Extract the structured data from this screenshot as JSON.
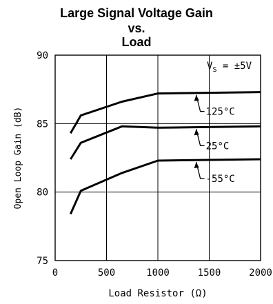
{
  "chart_data": {
    "type": "line",
    "title_lines": [
      "Large Signal Voltage Gain",
      "vs.",
      "Load"
    ],
    "xlabel": "Load Resistor (Ω)",
    "ylabel": "Open Loop Gain (dB)",
    "xlim": [
      0,
      2000
    ],
    "ylim": [
      75,
      90
    ],
    "x_ticks": [
      0,
      500,
      1000,
      1500,
      2000
    ],
    "y_ticks": [
      75,
      80,
      85,
      90
    ],
    "x_tick_labels": [
      "0",
      "500",
      "1000",
      "1500",
      "2000"
    ],
    "y_tick_labels": [
      "75",
      "80",
      "85",
      "90"
    ],
    "grid": true,
    "annotation": "VS = ±5V",
    "annotation_main": "V",
    "annotation_sub": "S",
    "annotation_rest": " = ±5V",
    "series": [
      {
        "name": "125°C",
        "points": [
          [
            150,
            84.3
          ],
          [
            250,
            85.6
          ],
          [
            650,
            86.6
          ],
          [
            1000,
            87.2
          ],
          [
            2000,
            87.3
          ]
        ]
      },
      {
        "name": "25°C",
        "points": [
          [
            150,
            82.4
          ],
          [
            250,
            83.6
          ],
          [
            650,
            84.8
          ],
          [
            1000,
            84.7
          ],
          [
            2000,
            84.8
          ]
        ]
      },
      {
        "name": "-55°C",
        "points": [
          [
            150,
            78.4
          ],
          [
            250,
            80.1
          ],
          [
            650,
            81.4
          ],
          [
            1000,
            82.3
          ],
          [
            2000,
            82.4
          ]
        ]
      }
    ]
  }
}
